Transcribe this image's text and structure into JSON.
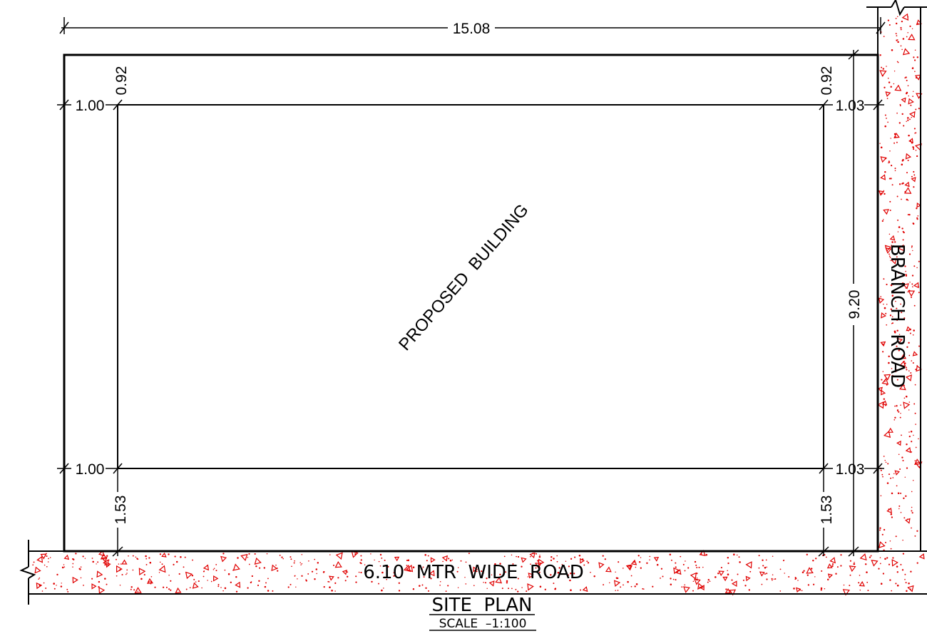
{
  "dimensions": {
    "plot_width": "15.08",
    "plot_depth": "9.20",
    "setback_top_left": "0.92",
    "setback_top_right": "0.92",
    "setback_left_upper": "1.00",
    "setback_left_lower": "1.00",
    "setback_right_upper": "1.03",
    "setback_right_lower": "1.03",
    "setback_bottom_left": "1.53",
    "setback_bottom_right": "1.53"
  },
  "labels": {
    "building": "PROPOSED  BUILDING",
    "side_road": "BRANCH  ROAD",
    "front_road": "6.10  MTR  WIDE  ROAD",
    "title": "SITE  PLAN",
    "scale": "SCALE  –1:100"
  },
  "colors": {
    "linework": "#000000",
    "road_hatch": "#e00000"
  }
}
